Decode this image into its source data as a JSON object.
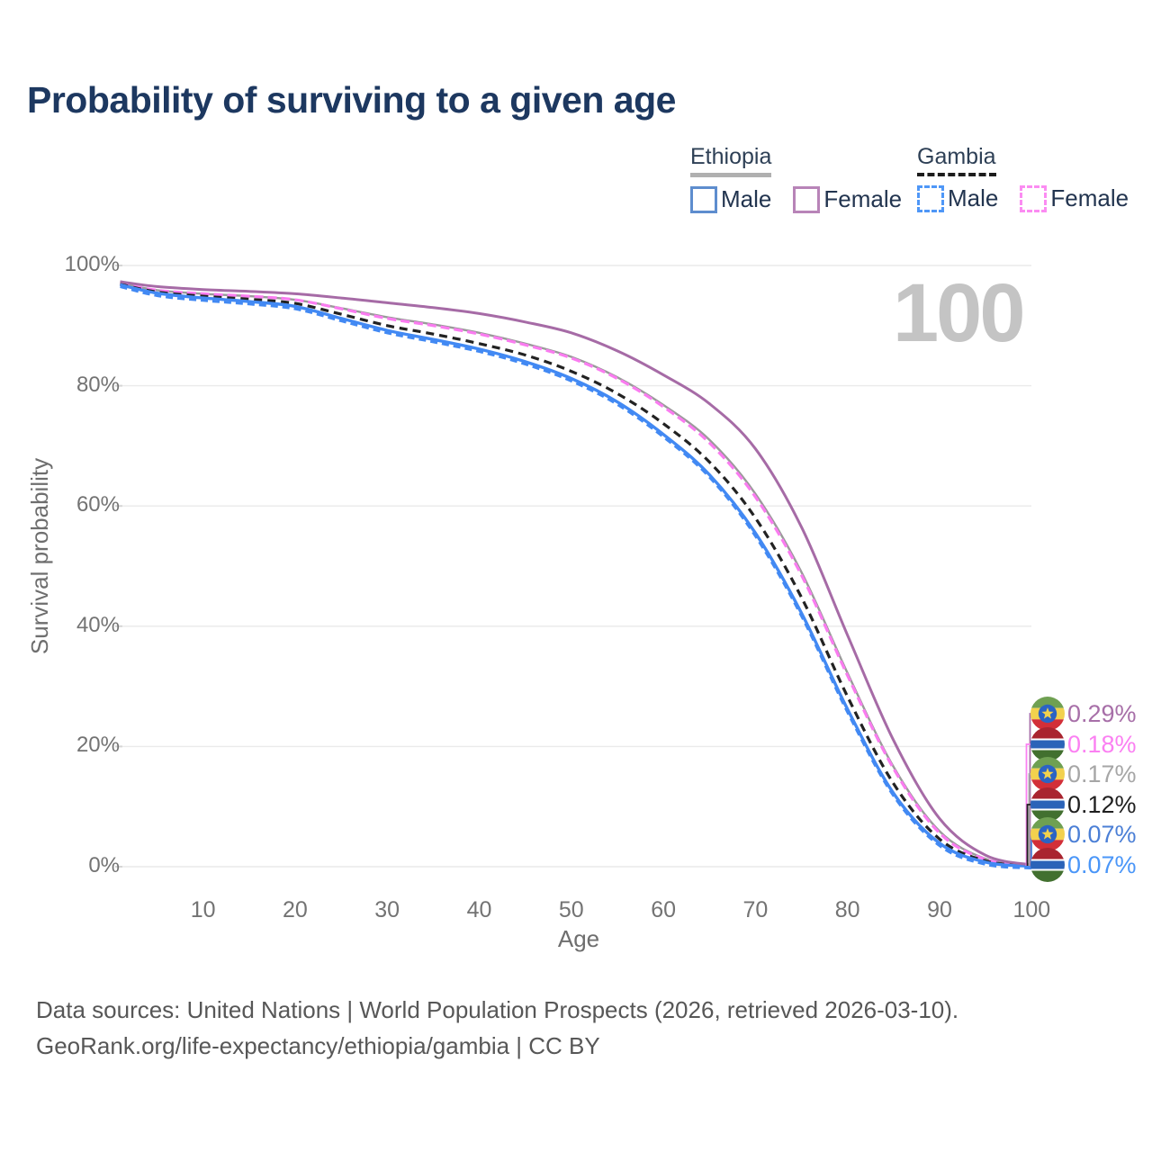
{
  "header": {
    "title": "Probability of surviving to a given age"
  },
  "legend": {
    "groups": [
      {
        "country": "Ethiopia",
        "line_style": "solid",
        "underline_color": "#b0b0b0",
        "items": [
          {
            "label": "Male",
            "color": "#5e8dce"
          },
          {
            "label": "Female",
            "color": "#b884b8"
          }
        ]
      },
      {
        "country": "Gambia",
        "line_style": "dashed",
        "underline_color": "#1c1c1c",
        "items": [
          {
            "label": "Male",
            "color": "#4f97f7"
          },
          {
            "label": "Female",
            "color": "#fb8cf2"
          }
        ]
      }
    ]
  },
  "chart_data": {
    "type": "line",
    "title": "Probability of surviving to a given age",
    "xlabel": "Age",
    "ylabel": "Survival probability",
    "xlim": [
      1,
      100
    ],
    "ylim": [
      0,
      100
    ],
    "x_ticks": [
      10,
      20,
      30,
      40,
      50,
      60,
      70,
      80,
      90,
      100
    ],
    "y_ticks_pct": [
      0,
      20,
      40,
      60,
      80,
      100
    ],
    "grid": "horizontal",
    "watermark": "100",
    "ages": [
      1,
      5,
      10,
      15,
      20,
      25,
      30,
      35,
      40,
      45,
      50,
      55,
      60,
      65,
      70,
      75,
      80,
      85,
      90,
      95,
      100
    ],
    "series": [
      {
        "id": "ethiopia_all",
        "country": "Ethiopia",
        "sex": "Both sexes",
        "color": "#9a9a9a",
        "line": "solid",
        "values": [
          97.1,
          95.9,
          95.3,
          94.9,
          94.3,
          92.9,
          91.4,
          90.2,
          88.8,
          87.0,
          84.8,
          81.4,
          76.8,
          71.0,
          62.0,
          49.0,
          32.2,
          16.6,
          5.9,
          1.3,
          0.17
        ]
      },
      {
        "id": "gambia_female",
        "country": "Gambia",
        "sex": "Female",
        "color": "#fa7cf0",
        "line": "dashed",
        "values": [
          97.0,
          95.9,
          95.3,
          94.9,
          94.3,
          92.8,
          91.2,
          90.0,
          88.6,
          86.8,
          84.6,
          81.2,
          76.5,
          70.5,
          61.5,
          48.5,
          31.8,
          16.3,
          5.6,
          1.2,
          0.18
        ]
      },
      {
        "id": "gambia_all",
        "country": "Gambia",
        "sex": "Both sexes",
        "color": "#222222",
        "line": "dashed",
        "values": [
          96.9,
          95.6,
          94.9,
          94.4,
          93.7,
          91.9,
          90.0,
          88.6,
          87.0,
          85.1,
          82.4,
          78.7,
          73.7,
          67.3,
          58.0,
          44.8,
          28.3,
          13.8,
          4.6,
          0.95,
          0.12
        ]
      },
      {
        "id": "gambia_male",
        "country": "Gambia",
        "sex": "Male",
        "color": "#4289f3",
        "line": "dashed",
        "values": [
          96.8,
          95.3,
          94.5,
          93.9,
          93.1,
          91.1,
          89.1,
          87.6,
          86.0,
          83.9,
          81.1,
          77.2,
          71.8,
          65.1,
          55.3,
          42.0,
          26.0,
          12.1,
          3.8,
          0.7,
          0.07
        ]
      },
      {
        "id": "ethiopia_male",
        "country": "Ethiopia",
        "sex": "Male",
        "color": "#4289f3",
        "line": "solid",
        "values": [
          96.8,
          95.4,
          94.6,
          94.0,
          93.2,
          91.2,
          89.2,
          87.7,
          86.1,
          84.0,
          81.2,
          77.3,
          71.9,
          65.2,
          55.5,
          42.2,
          26.2,
          12.2,
          3.9,
          0.75,
          0.07
        ]
      },
      {
        "id": "ethiopia_female",
        "country": "Ethiopia",
        "sex": "Female",
        "color": "#a66ba6",
        "line": "solid",
        "values": [
          97.3,
          96.5,
          96.0,
          95.7,
          95.3,
          94.6,
          93.8,
          93.0,
          92.0,
          90.6,
          88.8,
          85.8,
          81.8,
          77.0,
          69.5,
          56.5,
          38.5,
          21.0,
          8.0,
          1.9,
          0.29
        ]
      }
    ],
    "end_labels": [
      {
        "flag": "ethiopia",
        "series": "Ethiopia Female",
        "value": "0.29%",
        "color": "#a76fa8"
      },
      {
        "flag": "gambia",
        "series": "Gambia Female",
        "value": "0.18%",
        "color": "#fb80f2"
      },
      {
        "flag": "ethiopia",
        "series": "Ethiopia",
        "value": "0.17%",
        "color": "#a6a6a6"
      },
      {
        "flag": "gambia",
        "series": "Gambia",
        "value": "0.12%",
        "color": "#1f1f1f"
      },
      {
        "flag": "ethiopia",
        "series": "Ethiopia Male",
        "value": "0.07%",
        "color": "#4b7fd6"
      },
      {
        "flag": "gambia",
        "series": "Gambia Male",
        "value": "0.07%",
        "color": "#4a96f8"
      }
    ]
  },
  "flags": {
    "ethiopia": {
      "green": "#6fa052",
      "yellow": "#f2d14e",
      "red": "#d22f38",
      "blue": "#2b63c4"
    },
    "gambia": {
      "red": "#a9242f",
      "white": "#ffffff",
      "blue": "#2b63b8",
      "green": "#42702f"
    }
  },
  "footer": {
    "line1": "Data sources: United Nations | World Population Prospects (2026, retrieved 2026-03-10).",
    "line2": "GeoRank.org/life-expectancy/ethiopia/gambia | CC BY"
  }
}
